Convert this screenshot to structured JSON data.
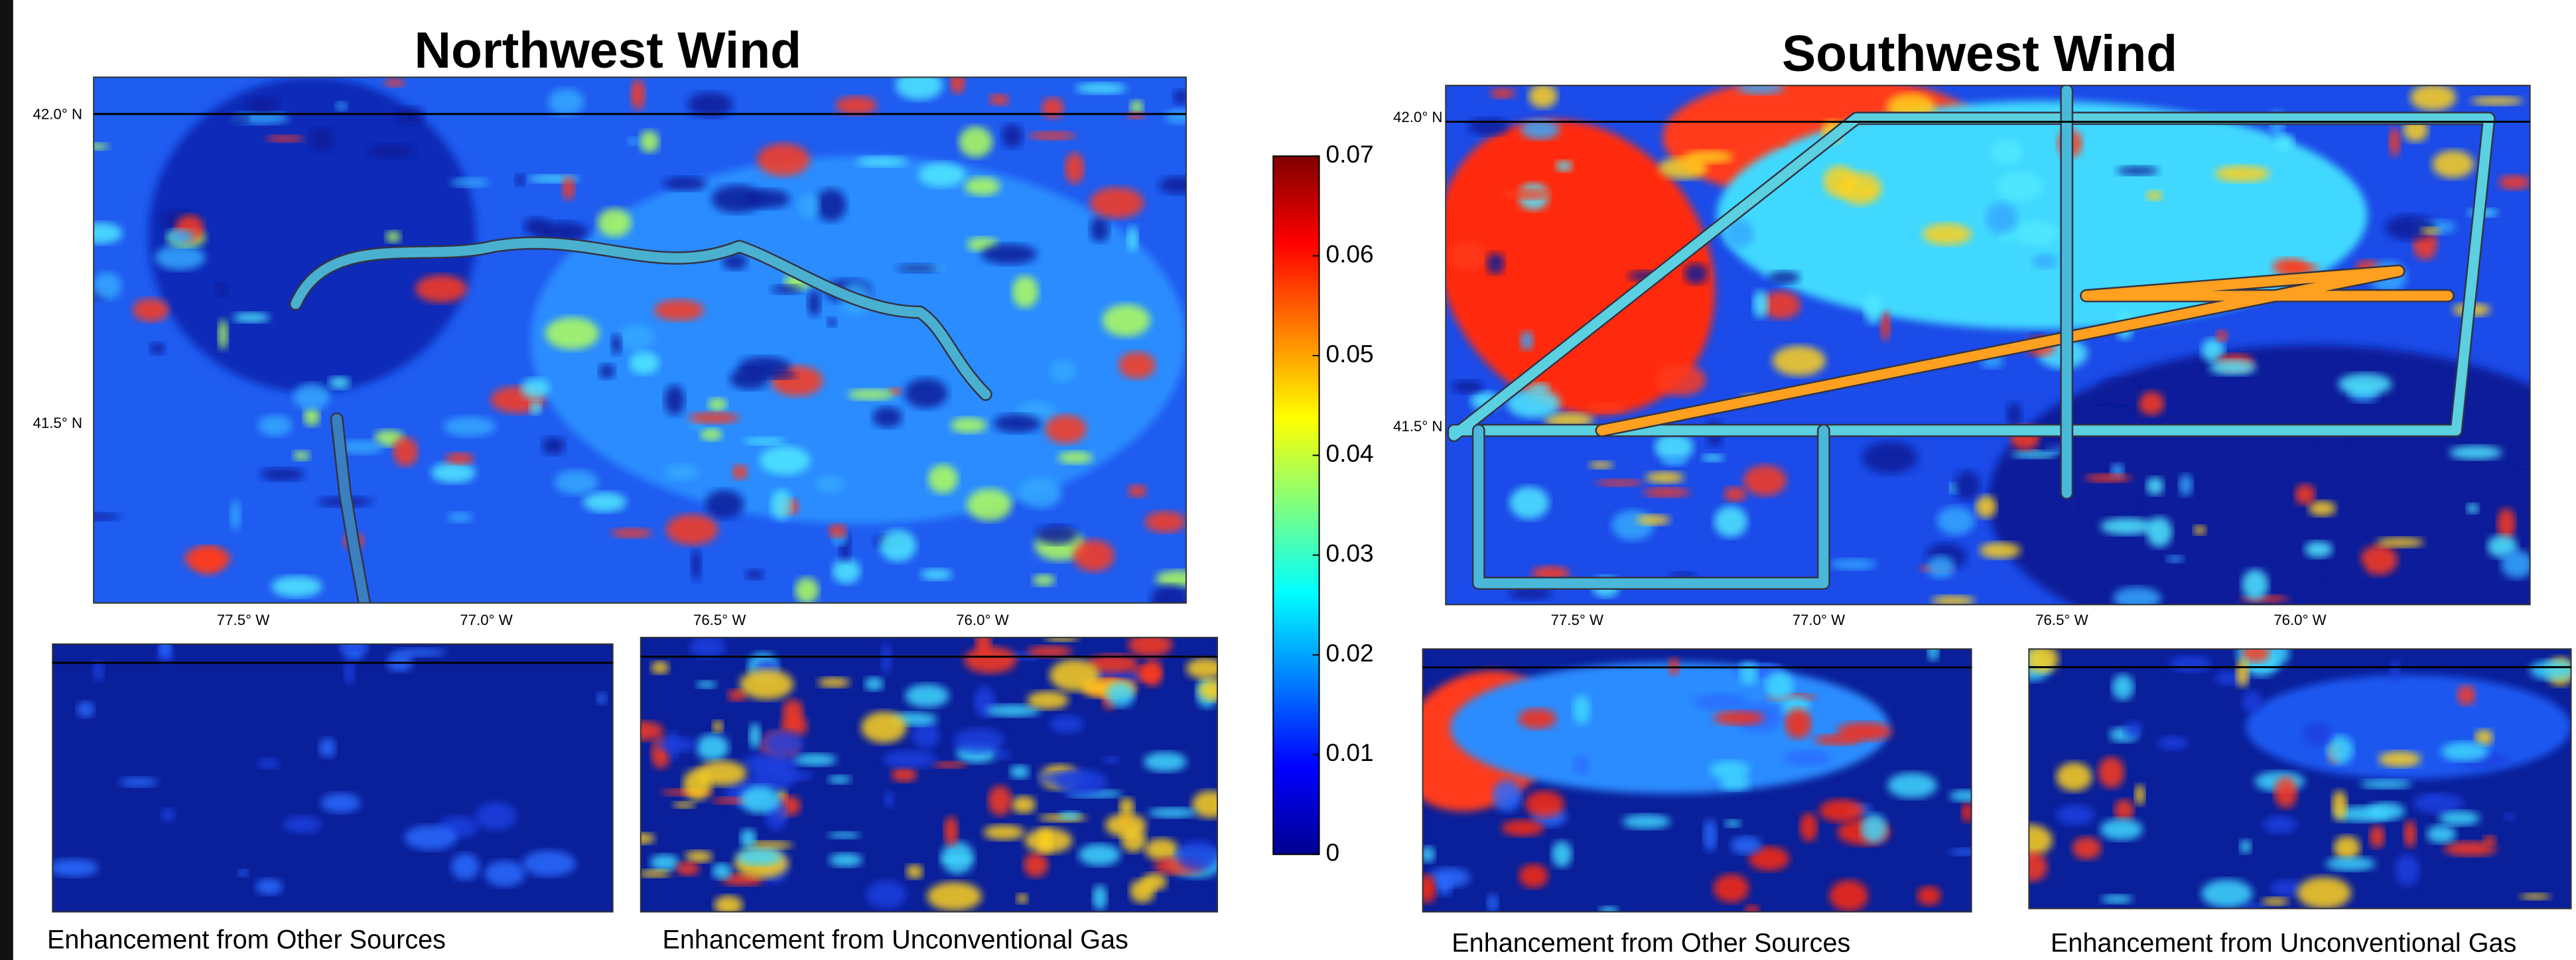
{
  "panels": [
    {
      "title": "Northwest Wind",
      "lat_labels": [
        "42.0° N",
        "41.5° N"
      ],
      "lon_labels": [
        "77.5° W",
        "77.0° W",
        "76.5° W",
        "76.0° W"
      ],
      "insets": [
        "Enhancement from Other Sources",
        "Enhancement from Unconventional Gas"
      ]
    },
    {
      "title": "Southwest Wind",
      "lat_labels": [
        "42.0° N",
        "41.5° N"
      ],
      "lon_labels": [
        "77.5° W",
        "77.0° W",
        "76.5° W",
        "76.0° W"
      ],
      "insets": [
        "Enhancement from Other Sources",
        "Enhancement from Unconventional Gas"
      ]
    }
  ],
  "colorbar": {
    "lim": [
      0,
      0.07
    ],
    "ticks": [
      0,
      0.01,
      0.02,
      0.03,
      0.04,
      0.05,
      0.06,
      0.07
    ],
    "colormap": "jet"
  }
}
